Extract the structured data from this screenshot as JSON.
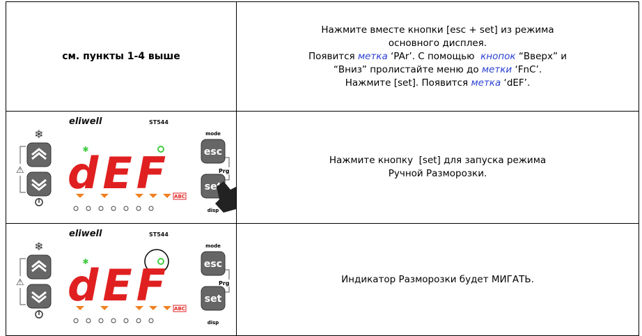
{
  "table": {
    "rows": [
      {
        "left": "см. пункты 1-4 выше",
        "right": [
          [
            {
              "text": "Нажмите вместе кнопки [esc + set] из режима"
            }
          ],
          [
            {
              "text": "основного дисплея."
            }
          ],
          [
            {
              "text": "Появится "
            },
            {
              "text": "метка",
              "em": true
            },
            {
              "text": " ‘PAr’. С помощью  "
            },
            {
              "text": "кнопок",
              "em": true
            },
            {
              "text": " “Вверх” и"
            }
          ],
          [
            {
              "text": "“Вниз” пролистайте меню до "
            },
            {
              "text": "метки",
              "em": true
            },
            {
              "text": " ‘FnC’."
            }
          ],
          [
            {
              "text": "Нажмите [set]. Появится "
            },
            {
              "text": "метка",
              "em": true
            },
            {
              "text": " ‘dEF’."
            }
          ]
        ]
      },
      {
        "device": {
          "brand": "eliwell",
          "model": "ST544",
          "mode": "mode",
          "esc": "esc",
          "prg": "Prg",
          "set": "set",
          "disp": "disp",
          "display": "dEF",
          "abc": "ABC"
        },
        "right": [
          [
            {
              "text": "Нажмите кнопку  [set] для запуска режима"
            }
          ],
          [
            {
              "text": "Ручной Разморозки."
            }
          ]
        ]
      },
      {
        "device": {
          "brand": "eliwell",
          "model": "ST544",
          "mode": "mode",
          "esc": "esc",
          "prg": "Prg",
          "set": "set",
          "disp": "disp",
          "display": "dEF",
          "abc": "ABC"
        },
        "right": [
          [
            {
              "text": "Индикатор Разморозки будет МИГАТЬ."
            }
          ]
        ]
      }
    ]
  }
}
